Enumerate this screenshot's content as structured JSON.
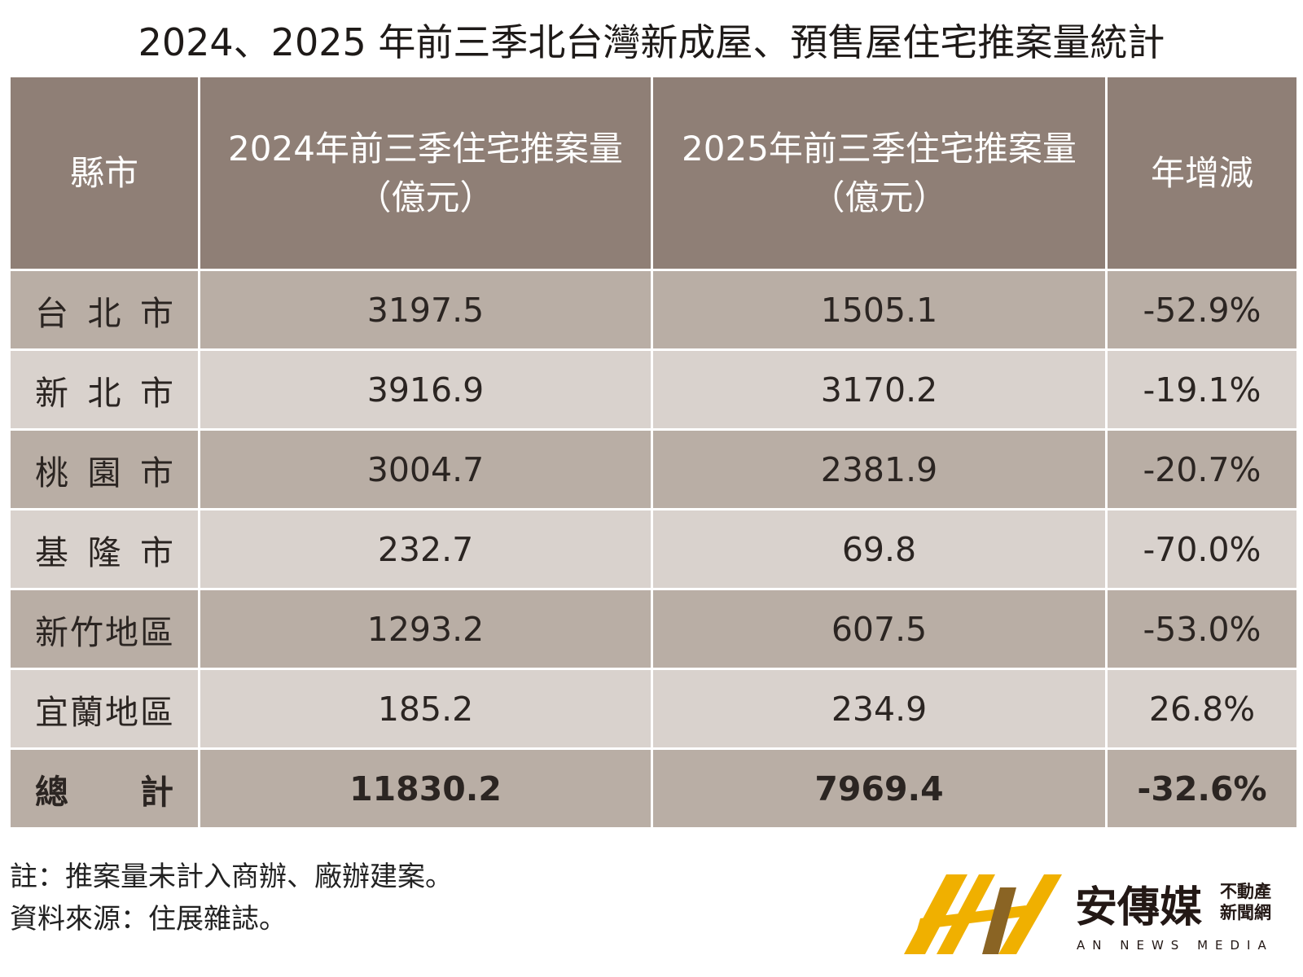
{
  "title": "2024、2025 年前三季北台灣新成屋、預售屋住宅推案量統計",
  "table": {
    "header": [
      [
        "縣市"
      ],
      [
        "2024年前三季住宅推案量",
        "（億元）"
      ],
      [
        "2025年前三季住宅推案量",
        "（億元）"
      ],
      [
        "年增減"
      ]
    ],
    "rows": [
      [
        "台北市",
        "3197.5",
        "1505.1",
        "-52.9%"
      ],
      [
        "新北市",
        "3916.9",
        "3170.2",
        "-19.1%"
      ],
      [
        "桃園市",
        "3004.7",
        "2381.9",
        "-20.7%"
      ],
      [
        "基隆市",
        "232.7",
        "69.8",
        "-70.0%"
      ],
      [
        "新竹地區",
        "1293.2",
        "607.5",
        "-53.0%"
      ],
      [
        "宜蘭地區",
        "185.2",
        "234.9",
        "26.8%"
      ],
      [
        "總計",
        "11830.2",
        "7969.4",
        "-32.6%"
      ]
    ]
  },
  "notes": [
    "註：推案量未計入商辦、廠辦建案。",
    "資料來源：住展雜誌。"
  ],
  "logo": {
    "name": "安傳媒",
    "tag_lines": [
      "不動產",
      "新聞網"
    ],
    "english": "AN NEWS MEDIA"
  }
}
